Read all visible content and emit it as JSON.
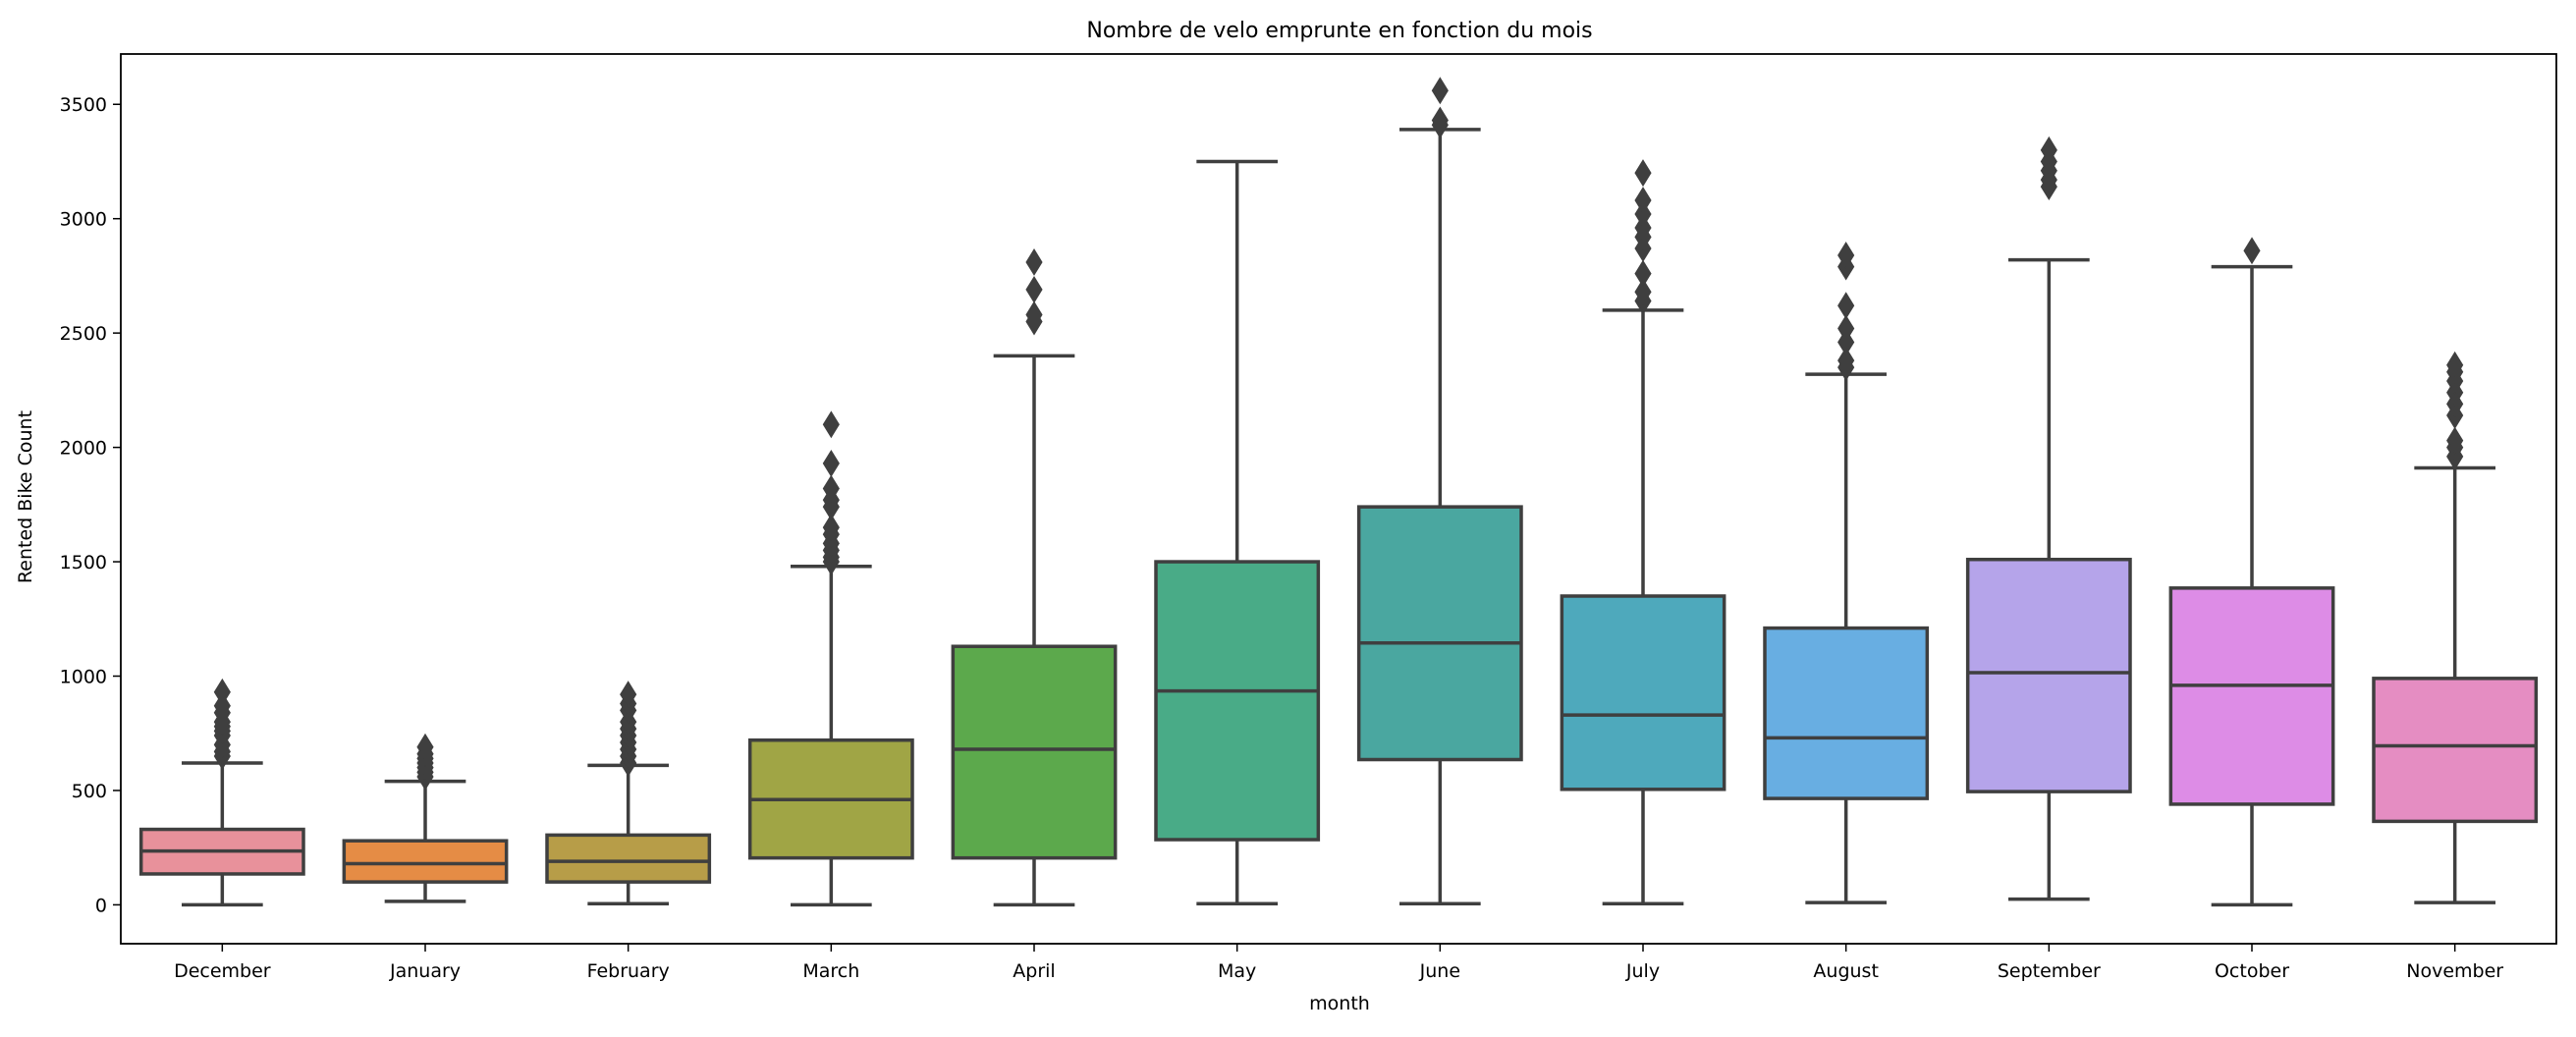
{
  "chart_data": {
    "type": "box",
    "title": "Nombre de velo emprunte en fonction du mois",
    "xlabel": "month",
    "ylabel": "Rented Bike Count",
    "ylim": [
      -170,
      3720
    ],
    "yticks": [
      0,
      500,
      1000,
      1500,
      2000,
      2500,
      3000,
      3500
    ],
    "grid": false,
    "legend": "none",
    "categories": [
      "December",
      "January",
      "February",
      "March",
      "April",
      "May",
      "June",
      "July",
      "August",
      "September",
      "October",
      "November"
    ],
    "boxes": [
      {
        "category": "December",
        "color": "#e8919b",
        "whisker_low": 0,
        "q1": 135,
        "median": 235,
        "q3": 330,
        "whisker_high": 620,
        "outliers": [
          650,
          670,
          700,
          740,
          760,
          780,
          800,
          840,
          870,
          930
        ]
      },
      {
        "category": "January",
        "color": "#e58c45",
        "whisker_low": 15,
        "q1": 100,
        "median": 180,
        "q3": 280,
        "whisker_high": 540,
        "outliers": [
          560,
          580,
          600,
          620,
          640,
          660,
          690
        ]
      },
      {
        "category": "February",
        "color": "#b79d48",
        "whisker_low": 5,
        "q1": 100,
        "median": 190,
        "q3": 305,
        "whisker_high": 610,
        "outliers": [
          620,
          650,
          680,
          710,
          740,
          770,
          800,
          850,
          880,
          920
        ]
      },
      {
        "category": "March",
        "color": "#a0a545",
        "whisker_low": 0,
        "q1": 205,
        "median": 460,
        "q3": 720,
        "whisker_high": 1480,
        "outliers": [
          1500,
          1520,
          1550,
          1580,
          1620,
          1650,
          1740,
          1770,
          1820,
          1930,
          2100
        ]
      },
      {
        "category": "April",
        "color": "#5ca94c",
        "whisker_low": 0,
        "q1": 205,
        "median": 680,
        "q3": 1130,
        "whisker_high": 2400,
        "outliers": [
          2550,
          2580,
          2690,
          2810
        ]
      },
      {
        "category": "May",
        "color": "#49ab87",
        "whisker_low": 5,
        "q1": 285,
        "median": 935,
        "q3": 1500,
        "whisker_high": 3250,
        "outliers": []
      },
      {
        "category": "June",
        "color": "#4aa7a0",
        "whisker_low": 5,
        "q1": 635,
        "median": 1145,
        "q3": 1740,
        "whisker_high": 3390,
        "outliers": [
          3410,
          3430,
          3560
        ]
      },
      {
        "category": "July",
        "color": "#4ea9bc",
        "whisker_low": 5,
        "q1": 505,
        "median": 830,
        "q3": 1350,
        "whisker_high": 2600,
        "outliers": [
          2640,
          2680,
          2760,
          2870,
          2920,
          2960,
          3020,
          3080,
          3200
        ]
      },
      {
        "category": "August",
        "color": "#68aee2",
        "whisker_low": 10,
        "q1": 465,
        "median": 730,
        "q3": 1210,
        "whisker_high": 2320,
        "outliers": [
          2350,
          2380,
          2460,
          2520,
          2620,
          2790,
          2840
        ]
      },
      {
        "category": "September",
        "color": "#b5a4ea",
        "whisker_low": 25,
        "q1": 495,
        "median": 1015,
        "q3": 1510,
        "whisker_high": 2820,
        "outliers": [
          3140,
          3170,
          3210,
          3250,
          3300
        ]
      },
      {
        "category": "October",
        "color": "#dd8ce6",
        "whisker_low": 0,
        "q1": 440,
        "median": 960,
        "q3": 1385,
        "whisker_high": 2790,
        "outliers": [
          2860
        ]
      },
      {
        "category": "November",
        "color": "#e58dc2",
        "whisker_low": 10,
        "q1": 365,
        "median": 695,
        "q3": 990,
        "whisker_high": 1910,
        "outliers": [
          1960,
          2000,
          2030,
          2140,
          2190,
          2240,
          2290,
          2330,
          2360
        ]
      }
    ]
  }
}
